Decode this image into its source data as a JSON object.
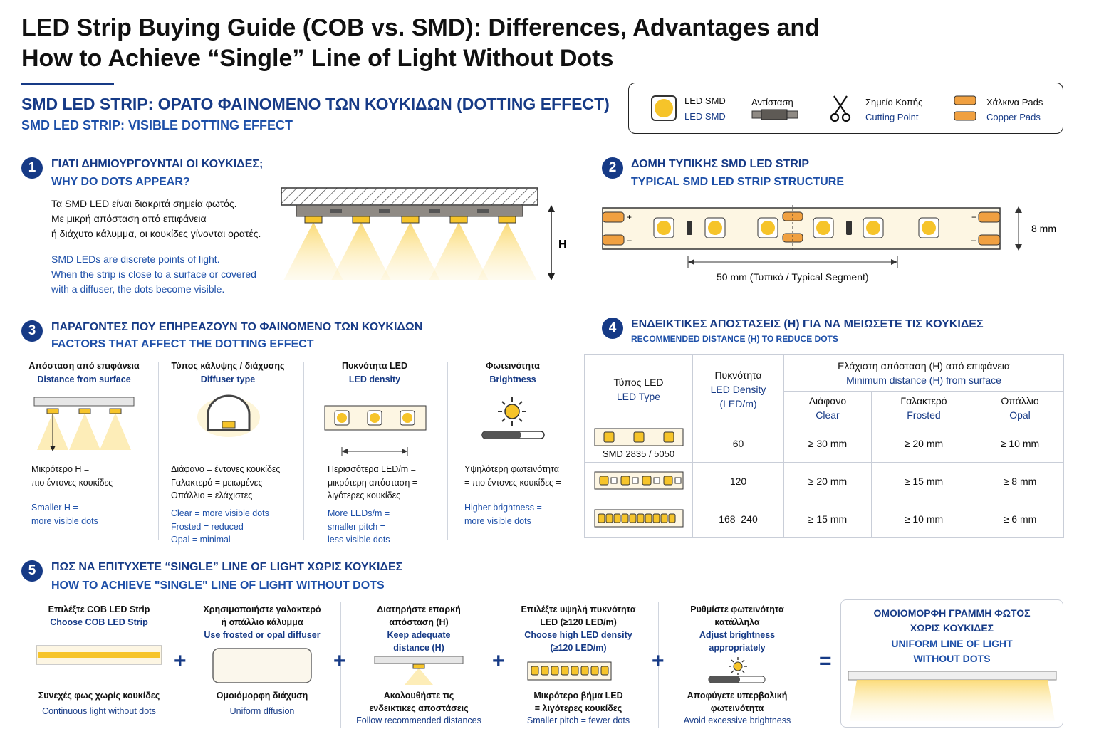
{
  "title": {
    "line1": "LED Strip Buying Guide (COB vs. SMD): Differences, Advantages and",
    "line2": "How to Achieve “Single” Line of Light Without Dots"
  },
  "header": {
    "gr": "SMD LED STRIP: ΟΡΑΤΟ ΦΑΙΝΟΜΕΝΟ ΤΩΝ ΚΟΥΚΙΔΩΝ (DOTTING EFFECT)",
    "en": "SMD LED STRIP: VISIBLE DOTTING EFFECT"
  },
  "legend": {
    "led_gr": "LED SMD",
    "led_en": "LED SMD",
    "resistor": "Αντίσταση",
    "cut_gr": "Σημείο Κοπής",
    "cut_en": "Cutting Point",
    "pads_gr": "Χάλκινα Pads",
    "pads_en": "Copper Pads"
  },
  "s1": {
    "num": "1",
    "gr": "ΓΙΑΤΙ ΔΗΜΙΟΥΡΓΟΥΝΤΑΙ ΟΙ ΚΟΥΚΙΔΕΣ;",
    "en": "WHY DO DOTS APPEAR?",
    "p_gr1": "Τα SMD LED είναι διακριτά σημεία φωτός.",
    "p_gr2": "Με μικρή απόσταση από επιφάνεια",
    "p_gr3": "ή διάχυτο κάλυμμα, οι κουκίδες γίνονται ορατές.",
    "p_en1": "SMD LEDs are discrete points of light.",
    "p_en2": "When the strip is close to a surface or covered",
    "p_en3": "with a diffuser, the dots become visible.",
    "h_label": "H"
  },
  "s2": {
    "num": "2",
    "gr": "ΔΟΜΗ ΤΥΠΙΚΗΣ SMD LED STRIP",
    "en": "TYPICAL SMD LED STRIP STRUCTURE",
    "width": "8 mm",
    "segment": "50 mm (Τυπικό / Typical Segment)",
    "plus": "+",
    "minus": "–"
  },
  "s3": {
    "num": "3",
    "gr": "ΠΑΡΑΓΟΝΤΕΣ ΠΟΥ ΕΠΗΡΕΑΖΟΥΝ ΤΟ ΦΑΙΝΟΜΕΝΟ ΤΩΝ ΚΟΥΚΙΔΩΝ",
    "en": "FACTORS THAT AFFECT THE DOTTING EFFECT",
    "factors": [
      {
        "h_gr": "Απόσταση από επιφάνεια",
        "h_en": "Distance from surface",
        "gr": [
          "Μικρότερο H =",
          "πιο έντονες κουκίδες"
        ],
        "en": [
          "Smaller H =",
          "more visible dots"
        ]
      },
      {
        "h_gr": "Τύπος κάλυψης / διάχυσης",
        "h_en": "Diffuser type",
        "gr": [
          "Διάφανο = έντονες κουκίδες",
          "Γαλακτερό = μειωμένες",
          "Οπάλλιο = ελάχιστες"
        ],
        "en": [
          "Clear = more visible dots",
          "Frosted = reduced",
          "Opal = minimal"
        ]
      },
      {
        "h_gr": "Πυκνότητα LED",
        "h_en": "LED density",
        "gr": [
          "Περισσότερα LED/m =",
          "μικρότερη απόσταση =",
          "λιγότερες κουκίδες"
        ],
        "en": [
          "More LEDs/m =",
          "smaller pitch =",
          "less visible dots"
        ]
      },
      {
        "h_gr": "Φωτεινότητα",
        "h_en": "Brightness",
        "gr": [
          "Υψηλότερη φωτεινότητα",
          "= πιο έντονες κουκίδες ="
        ],
        "en": [
          "Higher brightness =",
          "more visible dots"
        ]
      }
    ]
  },
  "s4": {
    "num": "4",
    "gr": "ΕΝΔΕΙΚΤΙΚΕΣ ΑΠΟΣΤΑΣΕΙΣ (H) ΓΙΑ ΝΑ ΜΕΙΩΣΕΤΕ ΤΙΣ ΚΟΥΚΙΔΕΣ",
    "en": "RECOMMENDED DISTANCE (H) TO REDUCE DOTS",
    "table": {
      "type_gr": "Τύπος LED",
      "type_en": "LED Type",
      "dens_gr": "Πυκνότητα",
      "dens_en": "LED Density",
      "dens_unit": "(LED/m)",
      "min_gr": "Ελάχιστη απόσταση (H) από επιφάνεια",
      "min_en": "Minimum distance (H) from surface",
      "clear_gr": "Διάφανο",
      "clear_en": "Clear",
      "frost_gr": "Γαλακτερό",
      "frost_en": "Frosted",
      "opal_gr": "Οπάλλιο",
      "opal_en": "Opal",
      "smd_label": "SMD 2835 / 5050",
      "rows": [
        {
          "density": "60",
          "clear": "≥ 30 mm",
          "frosted": "≥ 20 mm",
          "opal": "≥ 10 mm"
        },
        {
          "density": "120",
          "clear": "≥ 20 mm",
          "frosted": "≥ 15 mm",
          "opal": "≥ 8 mm"
        },
        {
          "density": "168–240",
          "clear": "≥ 15 mm",
          "frosted": "≥ 10 mm",
          "opal": "≥ 6 mm"
        }
      ]
    }
  },
  "s5": {
    "num": "5",
    "gr": "ΠΩΣ ΝΑ ΕΠΙΤΥΧΕΤΕ “SINGLE” LINE OF LIGHT ΧΩΡΙΣ ΚΟΥΚΙΔΕΣ",
    "en": "HOW TO ACHIEVE \"SINGLE\" LINE OF LIGHT WITHOUT DOTS",
    "steps": [
      {
        "top": [
          "Επιλέξτε COB LED Strip",
          "Choose COB LED Strip"
        ],
        "bot_gr": [
          "Συνεχές φως χωρίς κουκίδες"
        ],
        "bot_en": [
          "Continuous light without dots"
        ]
      },
      {
        "top": [
          "Χρησιμοποιήστε γαλακτερό",
          "ή οπάλλιο κάλυμμα",
          "Use frosted or opal diffuser"
        ],
        "bot_gr": [
          "Ομοιόμορφη διάχυση"
        ],
        "bot_en": [
          "Uniform dffusion"
        ]
      },
      {
        "top": [
          "Διατηρήστε επαρκή",
          "απόσταση (H)",
          "Keep adequate",
          "distance (H)"
        ],
        "bot_gr": [
          "Ακολουθήστε τις",
          "ενδεικτικες αποστάσεις"
        ],
        "bot_en": [
          "Follow recommended distances"
        ]
      },
      {
        "top": [
          "Επιλέξτε υψηλή πυκνότητα",
          "LED (≥120 LED/m)",
          "Choose high LED density",
          "(≥120 LED/m)"
        ],
        "bot_gr": [
          "Μικρότερο βήμα LED",
          "= λιγότερες κουκίδες"
        ],
        "bot_en": [
          "Smaller pitch = fewer dots"
        ]
      },
      {
        "top": [
          "Ρυθμίστε φωτεινότητα",
          "κατάλληλα",
          "Adjust brightness",
          "appropriately"
        ],
        "bot_gr": [
          "Αποφύγετε υπερβολική",
          "φωτεινότητα"
        ],
        "bot_en": [
          "Avoid excessive brightness"
        ]
      }
    ],
    "plus": "+",
    "equals": "=",
    "result_gr1": "ΟΜΟΙΟΜΟΡΦΗ ΓΡΑΜΜΗ ΦΩΤΟΣ",
    "result_gr2": "ΧΩΡΙΣ ΚΟΥΚΙΔΕΣ",
    "result_en1": "UNIFORM LINE OF LIGHT",
    "result_en2": "WITHOUT DOTS"
  },
  "colors": {
    "navy": "#163a86",
    "blue": "#1d4fa8",
    "led": "#f6c42a",
    "glow": "#fde9a6"
  }
}
